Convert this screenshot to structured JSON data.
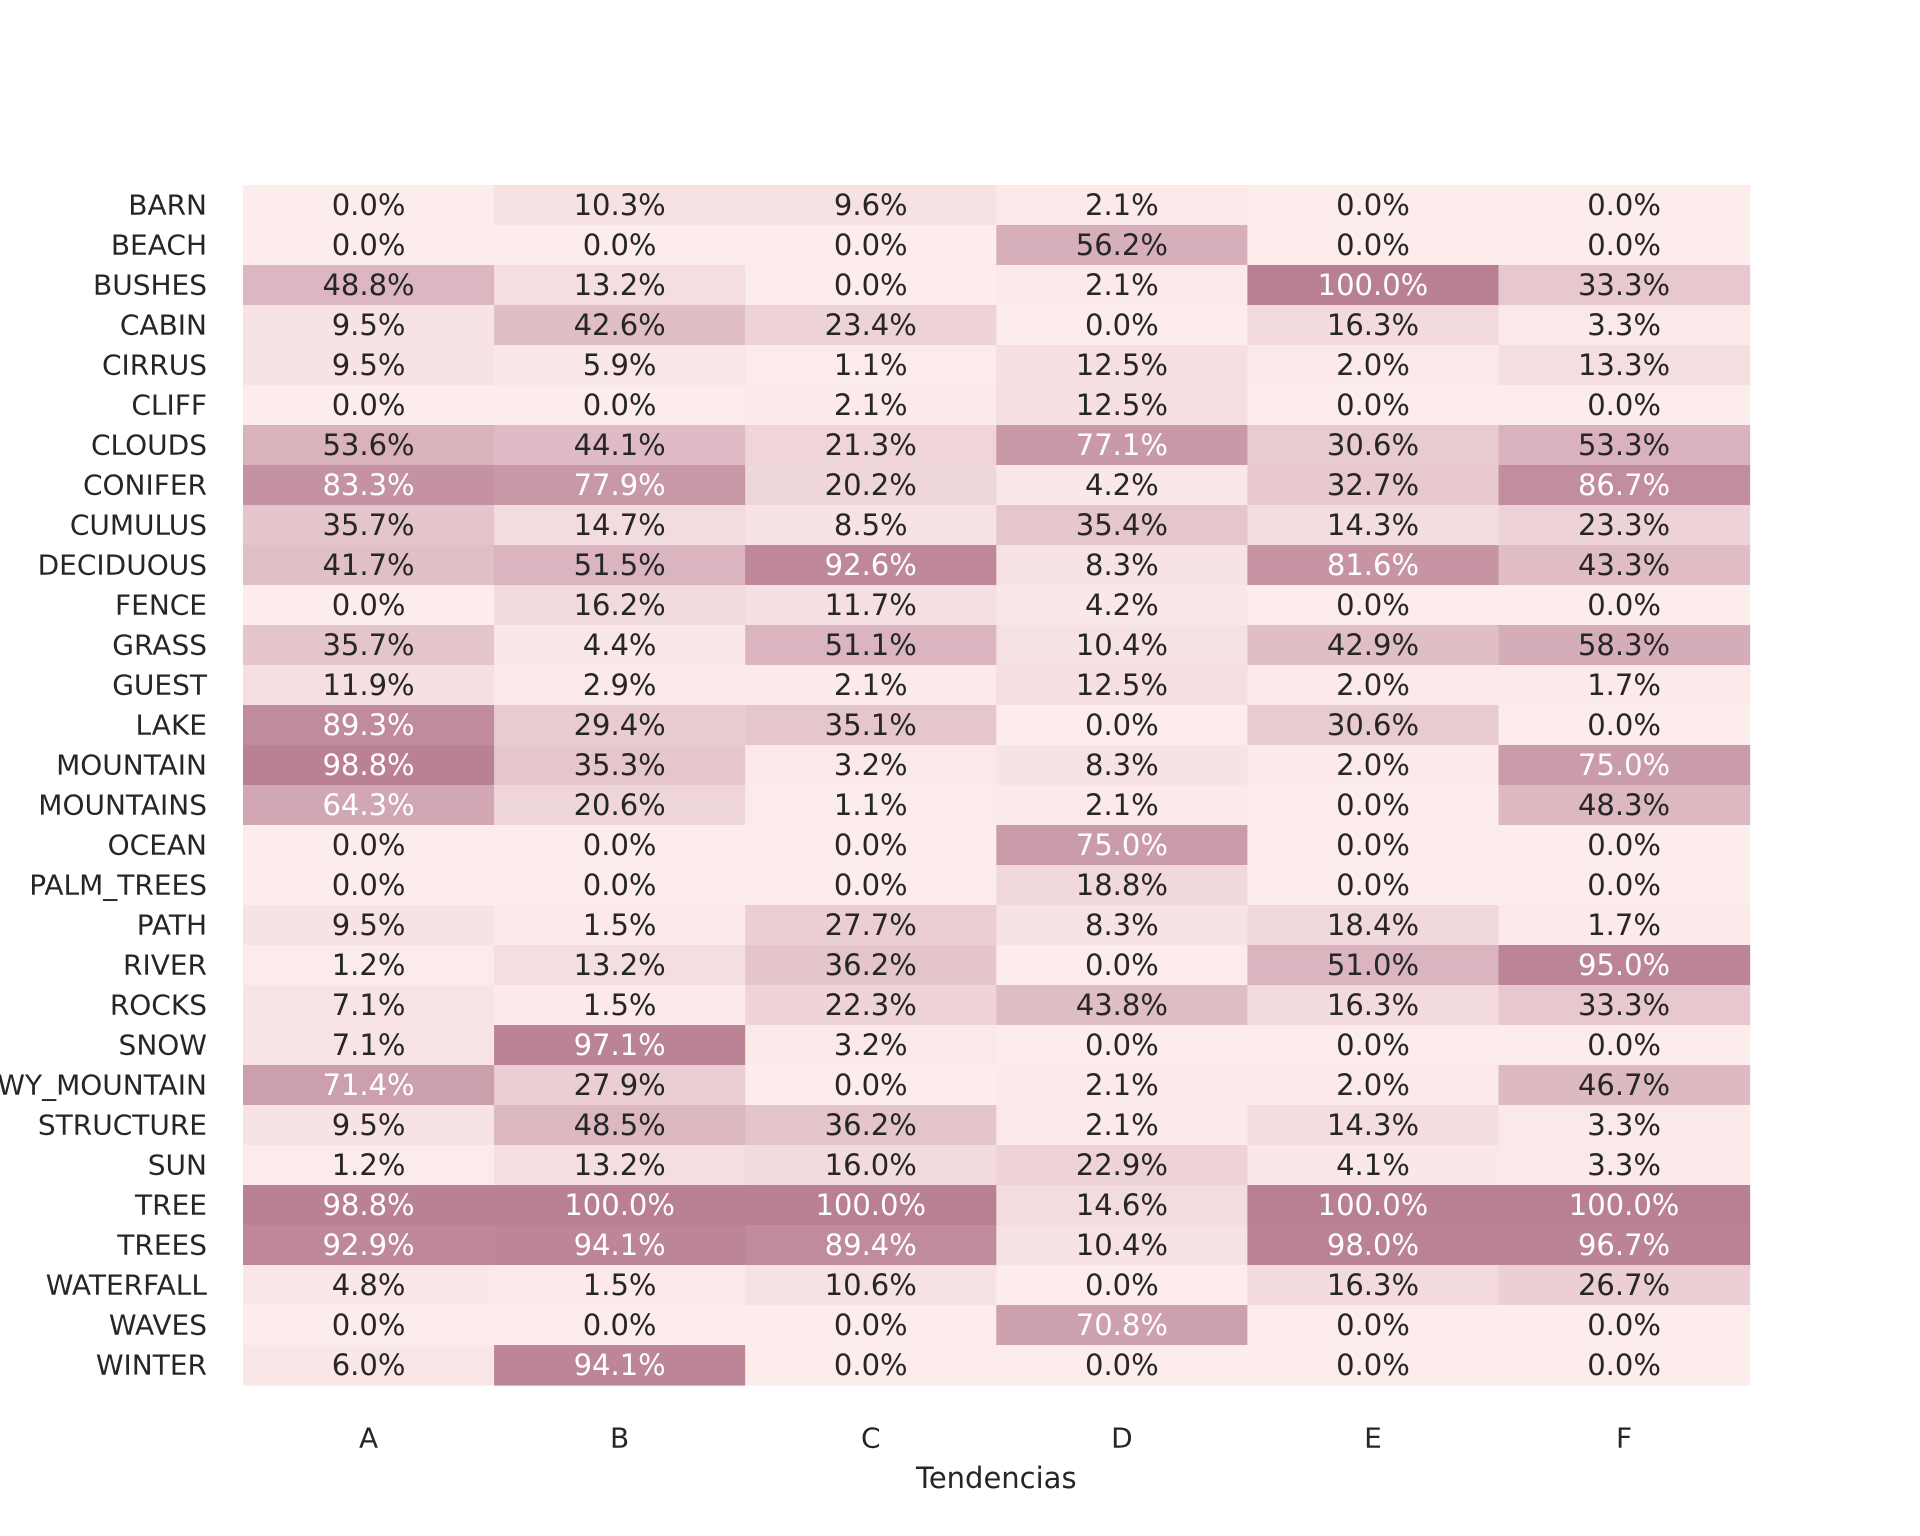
{
  "chart_data": {
    "type": "heatmap",
    "title": "",
    "xlabel": "Tendencias",
    "ylabel": "",
    "value_format": "percent_1dp",
    "color_range": [
      "#fdecec",
      "#b98093"
    ],
    "vmin": 0,
    "vmax": 100,
    "columns": [
      "A",
      "B",
      "C",
      "D",
      "E",
      "F"
    ],
    "rows": [
      "BARN",
      "BEACH",
      "BUSHES",
      "CABIN",
      "CIRRUS",
      "CLIFF",
      "CLOUDS",
      "CONIFER",
      "CUMULUS",
      "DECIDUOUS",
      "FENCE",
      "GRASS",
      "GUEST",
      "LAKE",
      "MOUNTAIN",
      "MOUNTAINS",
      "OCEAN",
      "PALM_TREES",
      "PATH",
      "RIVER",
      "ROCKS",
      "SNOW",
      "SNOWY_MOUNTAIN",
      "STRUCTURE",
      "SUN",
      "TREE",
      "TREES",
      "WATERFALL",
      "WAVES",
      "WINTER"
    ],
    "values": [
      [
        0.0,
        10.3,
        9.6,
        2.1,
        0.0,
        0.0
      ],
      [
        0.0,
        0.0,
        0.0,
        56.2,
        0.0,
        0.0
      ],
      [
        48.8,
        13.2,
        0.0,
        2.1,
        100.0,
        33.3
      ],
      [
        9.5,
        42.6,
        23.4,
        0.0,
        16.3,
        3.3
      ],
      [
        9.5,
        5.9,
        1.1,
        12.5,
        2.0,
        13.3
      ],
      [
        0.0,
        0.0,
        2.1,
        12.5,
        0.0,
        0.0
      ],
      [
        53.6,
        44.1,
        21.3,
        77.1,
        30.6,
        53.3
      ],
      [
        83.3,
        77.9,
        20.2,
        4.2,
        32.7,
        86.7
      ],
      [
        35.7,
        14.7,
        8.5,
        35.4,
        14.3,
        23.3
      ],
      [
        41.7,
        51.5,
        92.6,
        8.3,
        81.6,
        43.3
      ],
      [
        0.0,
        16.2,
        11.7,
        4.2,
        0.0,
        0.0
      ],
      [
        35.7,
        4.4,
        51.1,
        10.4,
        42.9,
        58.3
      ],
      [
        11.9,
        2.9,
        2.1,
        12.5,
        2.0,
        1.7
      ],
      [
        89.3,
        29.4,
        35.1,
        0.0,
        30.6,
        0.0
      ],
      [
        98.8,
        35.3,
        3.2,
        8.3,
        2.0,
        75.0
      ],
      [
        64.3,
        20.6,
        1.1,
        2.1,
        0.0,
        48.3
      ],
      [
        0.0,
        0.0,
        0.0,
        75.0,
        0.0,
        0.0
      ],
      [
        0.0,
        0.0,
        0.0,
        18.8,
        0.0,
        0.0
      ],
      [
        9.5,
        1.5,
        27.7,
        8.3,
        18.4,
        1.7
      ],
      [
        1.2,
        13.2,
        36.2,
        0.0,
        51.0,
        95.0
      ],
      [
        7.1,
        1.5,
        22.3,
        43.8,
        16.3,
        33.3
      ],
      [
        7.1,
        97.1,
        3.2,
        0.0,
        0.0,
        0.0
      ],
      [
        71.4,
        27.9,
        0.0,
        2.1,
        2.0,
        46.7
      ],
      [
        9.5,
        48.5,
        36.2,
        2.1,
        14.3,
        3.3
      ],
      [
        1.2,
        13.2,
        16.0,
        22.9,
        4.1,
        3.3
      ],
      [
        98.8,
        100.0,
        100.0,
        14.6,
        100.0,
        100.0
      ],
      [
        92.9,
        94.1,
        89.4,
        10.4,
        98.0,
        96.7
      ],
      [
        4.8,
        1.5,
        10.6,
        0.0,
        16.3,
        26.7
      ],
      [
        0.0,
        0.0,
        0.0,
        70.8,
        0.0,
        0.0
      ],
      [
        6.0,
        94.1,
        0.0,
        0.0,
        0.0,
        0.0
      ]
    ],
    "text_colors": {
      "dark": "#262626",
      "light": "#ffffff"
    },
    "light_text_threshold": 60
  }
}
